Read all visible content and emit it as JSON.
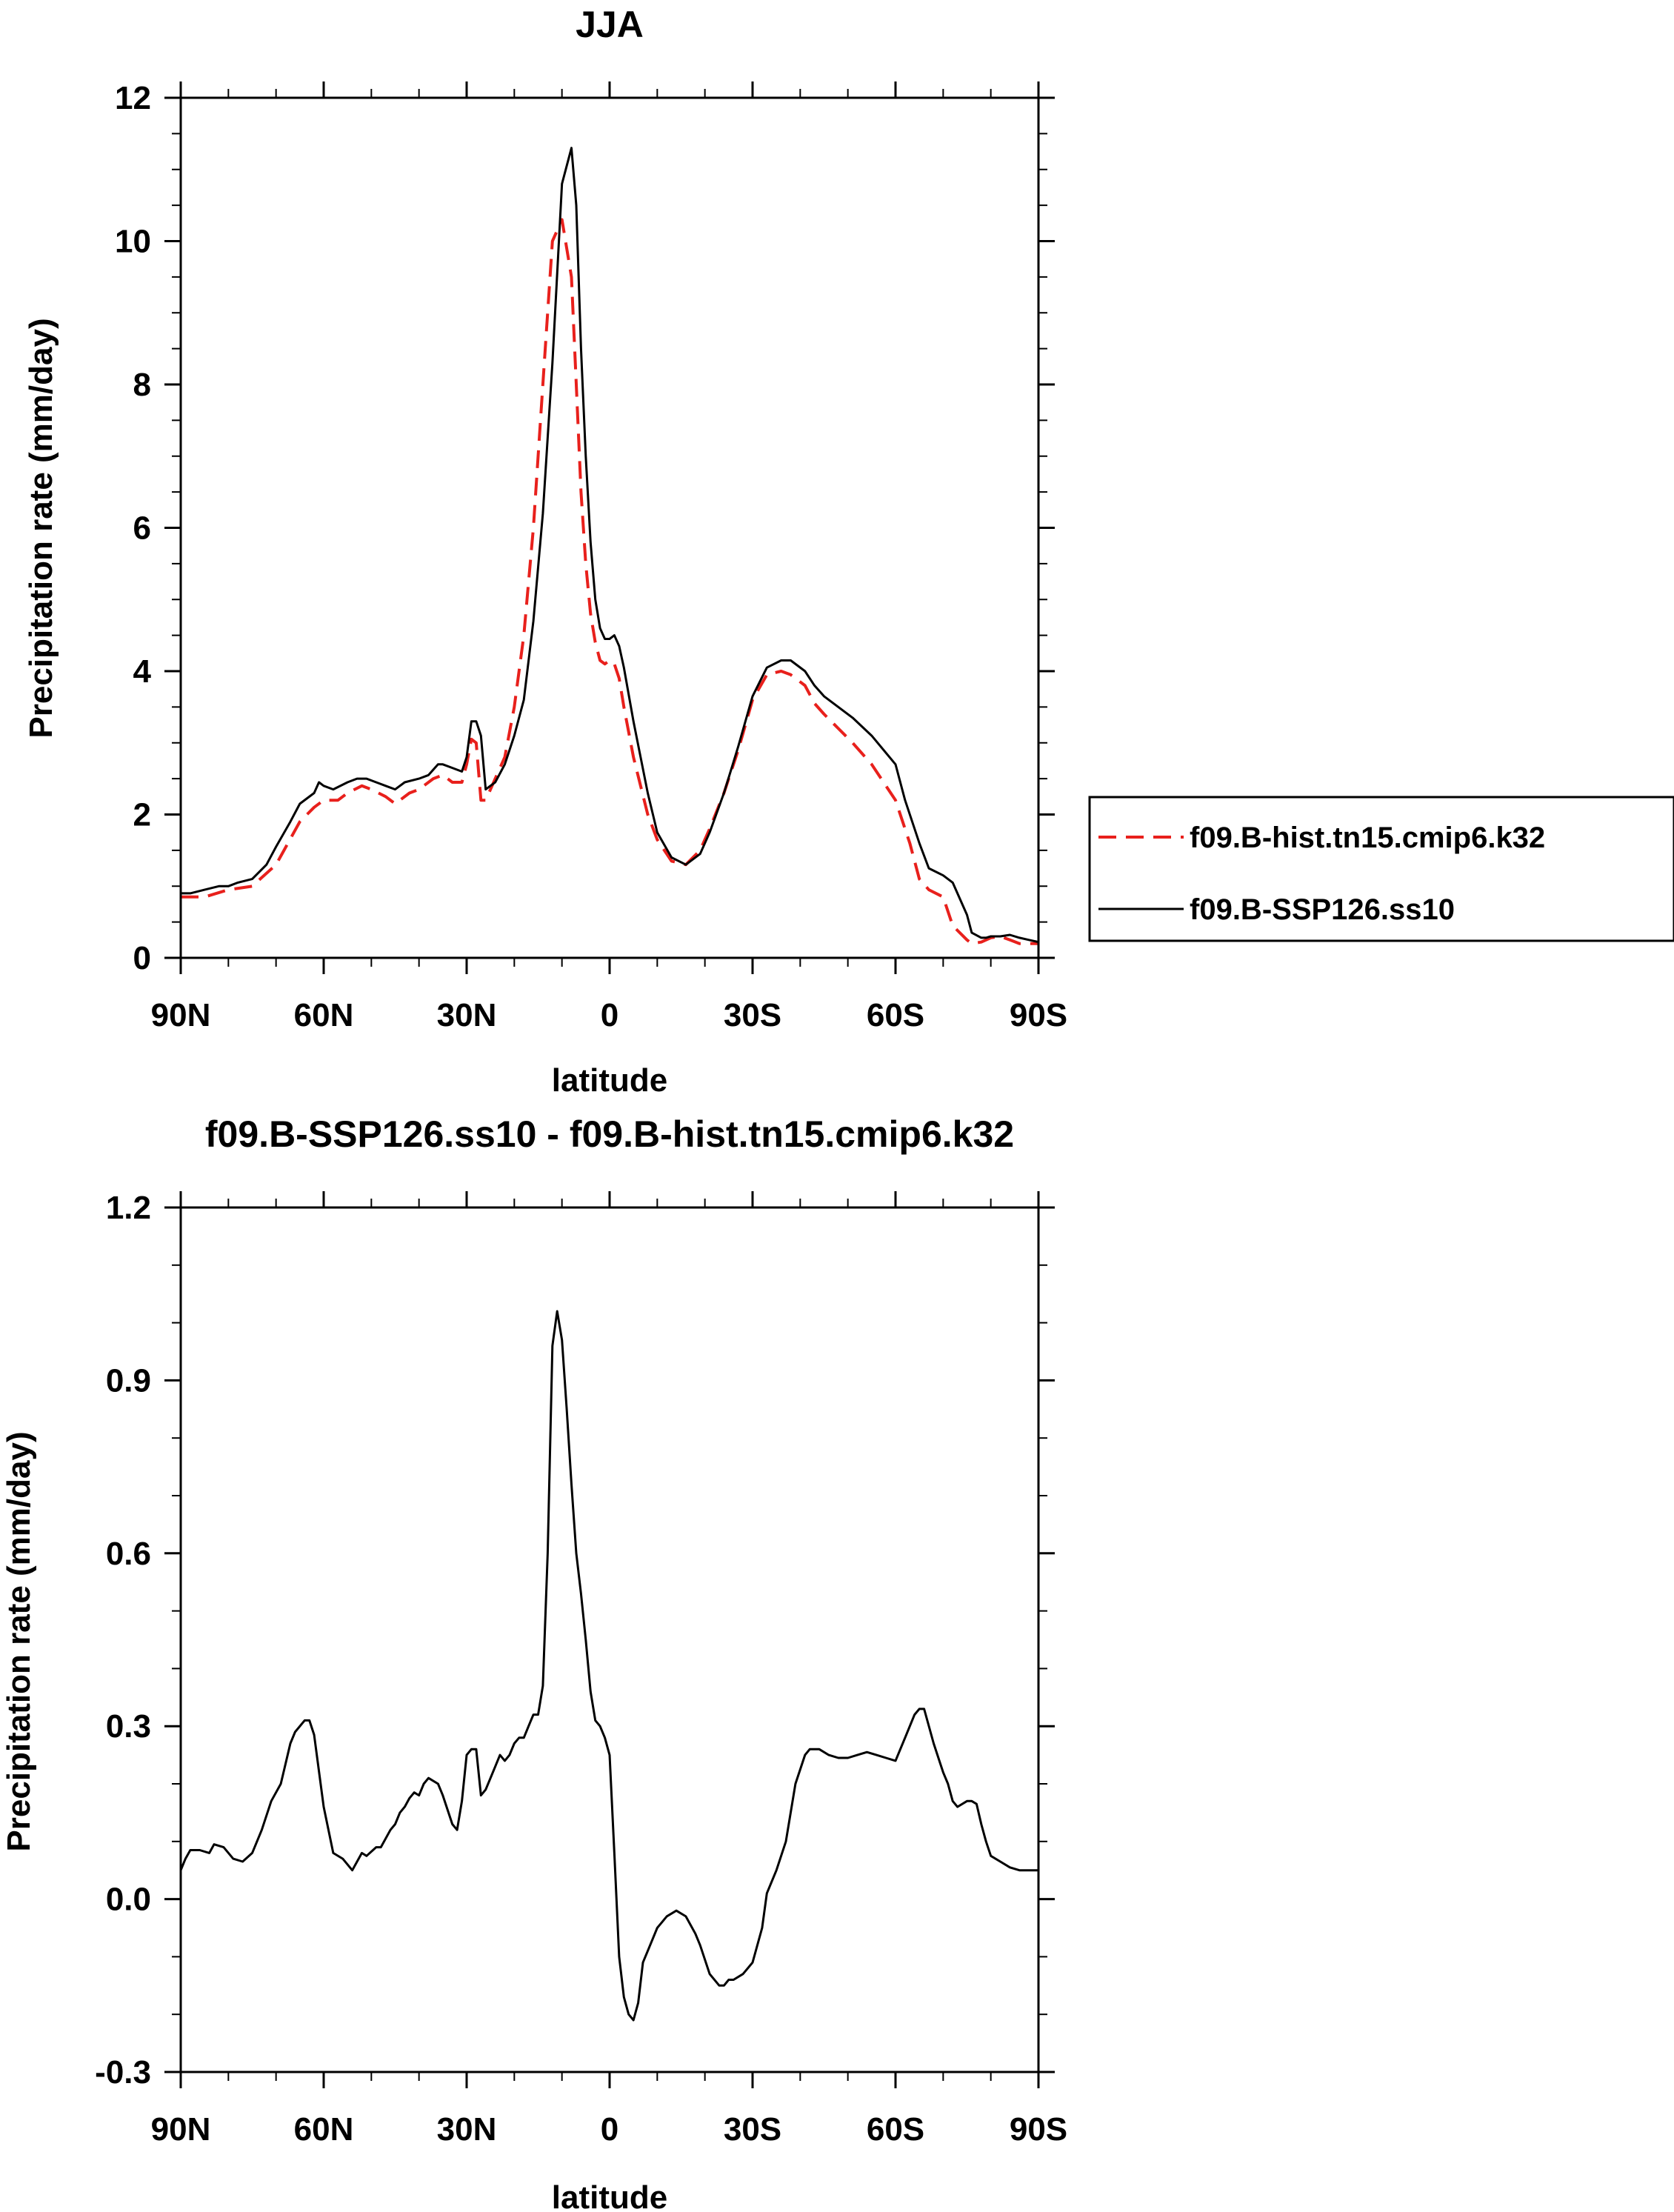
{
  "chart_data": [
    {
      "type": "line",
      "title": "JJA",
      "xlabel": "latitude",
      "ylabel": "Precipitation rate (mm/day)",
      "xlim": [
        90,
        -90
      ],
      "ylim": [
        0,
        12
      ],
      "x_ticks": [
        {
          "value": 90,
          "label": "90N"
        },
        {
          "value": 60,
          "label": "60N"
        },
        {
          "value": 30,
          "label": "30N"
        },
        {
          "value": 0,
          "label": "0"
        },
        {
          "value": -30,
          "label": "30S"
        },
        {
          "value": -60,
          "label": "60S"
        },
        {
          "value": -90,
          "label": "90S"
        }
      ],
      "y_ticks": [
        {
          "value": 0,
          "label": "0"
        },
        {
          "value": 2,
          "label": "2"
        },
        {
          "value": 4,
          "label": "4"
        },
        {
          "value": 6,
          "label": "6"
        },
        {
          "value": 8,
          "label": "8"
        },
        {
          "value": 10,
          "label": "10"
        },
        {
          "value": 12,
          "label": "12"
        }
      ],
      "legend": {
        "position": "right",
        "entries": [
          {
            "label": "f09.B-hist.tn15.cmip6.k32",
            "color": "#e8201c",
            "style": "dashed"
          },
          {
            "label": "f09.B-SSP126.ss10",
            "color": "#000000",
            "style": "solid"
          }
        ]
      },
      "series": [
        {
          "name": "f09.B-hist.tn15.cmip6.k32",
          "color": "#e8201c",
          "style": "dashed",
          "x": [
            90,
            85,
            80,
            75,
            70,
            65,
            62,
            60,
            57,
            55,
            52,
            50,
            47,
            45,
            42,
            40,
            37,
            35,
            33,
            31,
            30,
            29,
            28,
            27,
            26,
            24,
            22,
            20,
            18,
            16,
            14,
            12,
            10,
            8,
            7,
            6,
            5,
            4,
            3,
            2,
            1,
            0,
            -1,
            -2,
            -3,
            -5,
            -8,
            -10,
            -13,
            -16,
            -19,
            -21,
            -24,
            -27,
            -30,
            -33,
            -36,
            -38,
            -41,
            -43,
            -45,
            -48,
            -51,
            -55,
            -60,
            -63,
            -65,
            -67,
            -70,
            -72,
            -75,
            -76,
            -78,
            -79,
            -80,
            -82,
            -84,
            -86,
            -88,
            -90
          ],
          "values": [
            0.85,
            0.85,
            0.95,
            1.0,
            1.3,
            1.9,
            2.1,
            2.2,
            2.2,
            2.3,
            2.4,
            2.35,
            2.25,
            2.15,
            2.3,
            2.35,
            2.5,
            2.55,
            2.45,
            2.45,
            2.7,
            3.05,
            3.0,
            2.2,
            2.2,
            2.5,
            2.8,
            3.5,
            4.5,
            6.0,
            8.0,
            10.0,
            10.3,
            9.5,
            8.0,
            6.5,
            5.5,
            4.8,
            4.4,
            4.15,
            4.1,
            4.15,
            4.1,
            3.9,
            3.5,
            2.8,
            2.0,
            1.65,
            1.35,
            1.3,
            1.5,
            1.8,
            2.3,
            2.9,
            3.6,
            3.95,
            4.0,
            3.95,
            3.8,
            3.55,
            3.4,
            3.2,
            3.0,
            2.7,
            2.2,
            1.6,
            1.1,
            0.95,
            0.85,
            0.45,
            0.25,
            0.2,
            0.22,
            0.25,
            0.28,
            0.3,
            0.25,
            0.2,
            0.2,
            0.2
          ]
        },
        {
          "name": "f09.B-SSP126.ss10",
          "color": "#000000",
          "style": "solid",
          "x": [
            90,
            88,
            85,
            82,
            80,
            78,
            75,
            72,
            70,
            67,
            65,
            62,
            61,
            60,
            58,
            55,
            53,
            51,
            49,
            47,
            45,
            43,
            40,
            38,
            36,
            35,
            33,
            31,
            30,
            29,
            28,
            27,
            26,
            24,
            22,
            20,
            18,
            16,
            14,
            12,
            10,
            8,
            7,
            6,
            5,
            4,
            3,
            2,
            1,
            0,
            -1,
            -2,
            -3,
            -5,
            -8,
            -10,
            -13,
            -16,
            -19,
            -21,
            -24,
            -27,
            -30,
            -33,
            -36,
            -38,
            -41,
            -43,
            -45,
            -48,
            -51,
            -55,
            -60,
            -62,
            -65,
            -67,
            -70,
            -72,
            -75,
            -76,
            -78,
            -79,
            -80,
            -82,
            -84,
            -86,
            -88,
            -90
          ],
          "values": [
            0.9,
            0.9,
            0.95,
            1.0,
            1.0,
            1.05,
            1.1,
            1.3,
            1.55,
            1.9,
            2.15,
            2.3,
            2.45,
            2.4,
            2.35,
            2.45,
            2.5,
            2.5,
            2.45,
            2.4,
            2.35,
            2.45,
            2.5,
            2.55,
            2.7,
            2.7,
            2.65,
            2.6,
            2.8,
            3.3,
            3.3,
            3.1,
            2.35,
            2.45,
            2.7,
            3.1,
            3.6,
            4.7,
            6.2,
            8.3,
            10.8,
            11.3,
            10.5,
            8.5,
            7.0,
            5.8,
            5.0,
            4.6,
            4.45,
            4.45,
            4.5,
            4.35,
            4.05,
            3.3,
            2.3,
            1.75,
            1.4,
            1.3,
            1.45,
            1.75,
            2.3,
            2.95,
            3.65,
            4.05,
            4.15,
            4.15,
            4.0,
            3.8,
            3.65,
            3.5,
            3.35,
            3.1,
            2.7,
            2.2,
            1.6,
            1.25,
            1.15,
            1.05,
            0.6,
            0.35,
            0.28,
            0.28,
            0.3,
            0.3,
            0.32,
            0.28,
            0.25,
            0.22
          ]
        }
      ]
    },
    {
      "type": "line",
      "title": "f09.B-SSP126.ss10 - f09.B-hist.tn15.cmip6.k32",
      "xlabel": "latitude",
      "ylabel": "Precipitation rate (mm/day)",
      "xlim": [
        90,
        -90
      ],
      "ylim": [
        -0.3,
        1.2
      ],
      "x_ticks": [
        {
          "value": 90,
          "label": "90N"
        },
        {
          "value": 60,
          "label": "60N"
        },
        {
          "value": 30,
          "label": "30N"
        },
        {
          "value": 0,
          "label": "0"
        },
        {
          "value": -30,
          "label": "30S"
        },
        {
          "value": -60,
          "label": "60S"
        },
        {
          "value": -90,
          "label": "90S"
        }
      ],
      "y_ticks": [
        {
          "value": -0.3,
          "label": "-0.3"
        },
        {
          "value": 0.0,
          "label": "0.0"
        },
        {
          "value": 0.3,
          "label": "0.3"
        },
        {
          "value": 0.6,
          "label": "0.6"
        },
        {
          "value": 0.9,
          "label": "0.9"
        },
        {
          "value": 1.2,
          "label": "1.2"
        }
      ],
      "series": [
        {
          "name": "f09.B-SSP126.ss10 - f09.B-hist.tn15.cmip6.k32",
          "color": "#000000",
          "style": "solid",
          "x": [
            90,
            89,
            88,
            86,
            84,
            83,
            81,
            79,
            77,
            75,
            73,
            71,
            69,
            67,
            66,
            64,
            63,
            62,
            60,
            58,
            56,
            54,
            52,
            51,
            49,
            48,
            46,
            45,
            44,
            43,
            42,
            41,
            40,
            39,
            38,
            36,
            35,
            33,
            32,
            31,
            30,
            29,
            28,
            27,
            26,
            25,
            24,
            23,
            22,
            21,
            20,
            19,
            18,
            17,
            16,
            15,
            14,
            13,
            12,
            11,
            10,
            9,
            8,
            7,
            6,
            5,
            4,
            3,
            2,
            1,
            0,
            -1,
            -2,
            -3,
            -4,
            -5,
            -6,
            -7,
            -8,
            -9,
            -10,
            -11,
            -12,
            -14,
            -16,
            -18,
            -19,
            -21,
            -23,
            -24,
            -25,
            -26,
            -28,
            -30,
            -32,
            -33,
            -35,
            -37,
            -39,
            -41,
            -42,
            -44,
            -46,
            -48,
            -50,
            -52,
            -54,
            -56,
            -58,
            -60,
            -62,
            -63,
            -64,
            -65,
            -66,
            -68,
            -70,
            -71,
            -72,
            -73,
            -75,
            -76,
            -77,
            -78,
            -79,
            -80,
            -82,
            -84,
            -86,
            -88,
            -90
          ],
          "values": [
            0.05,
            0.07,
            0.085,
            0.085,
            0.08,
            0.095,
            0.09,
            0.07,
            0.065,
            0.08,
            0.12,
            0.17,
            0.2,
            0.27,
            0.29,
            0.31,
            0.31,
            0.285,
            0.16,
            0.08,
            0.07,
            0.05,
            0.08,
            0.075,
            0.09,
            0.09,
            0.12,
            0.13,
            0.15,
            0.16,
            0.175,
            0.185,
            0.18,
            0.2,
            0.21,
            0.2,
            0.18,
            0.13,
            0.12,
            0.17,
            0.25,
            0.26,
            0.26,
            0.18,
            0.19,
            0.21,
            0.23,
            0.25,
            0.24,
            0.25,
            0.27,
            0.28,
            0.28,
            0.3,
            0.32,
            0.32,
            0.37,
            0.6,
            0.96,
            1.02,
            0.97,
            0.85,
            0.72,
            0.6,
            0.53,
            0.45,
            0.36,
            0.31,
            0.3,
            0.28,
            0.25,
            0.08,
            -0.1,
            -0.17,
            -0.2,
            -0.21,
            -0.18,
            -0.11,
            -0.09,
            -0.07,
            -0.05,
            -0.04,
            -0.03,
            -0.02,
            -0.03,
            -0.06,
            -0.08,
            -0.13,
            -0.15,
            -0.15,
            -0.14,
            -0.14,
            -0.13,
            -0.11,
            -0.05,
            0.01,
            0.05,
            0.1,
            0.2,
            0.25,
            0.26,
            0.26,
            0.25,
            0.245,
            0.245,
            0.25,
            0.255,
            0.25,
            0.245,
            0.24,
            0.28,
            0.3,
            0.32,
            0.33,
            0.33,
            0.27,
            0.22,
            0.2,
            0.17,
            0.16,
            0.17,
            0.17,
            0.165,
            0.13,
            0.1,
            0.075,
            0.065,
            0.055,
            0.05,
            0.05,
            0.05
          ]
        }
      ]
    }
  ]
}
